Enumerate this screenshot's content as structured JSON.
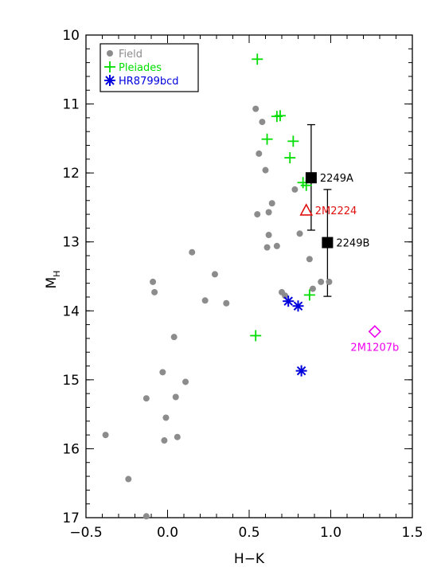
{
  "chart_data": {
    "type": "scatter",
    "title": "",
    "xlabel": "H−K",
    "ylabel_main": "M",
    "ylabel_sub": "H",
    "xlim": [
      -0.5,
      1.5
    ],
    "ylim": [
      17,
      10
    ],
    "y_inverted": true,
    "grid": false,
    "legend_position": "top-left",
    "x_ticks": [
      {
        "value": -0.5,
        "label": "−0.5"
      },
      {
        "value": 0.0,
        "label": "0.0"
      },
      {
        "value": 0.5,
        "label": "0.5"
      },
      {
        "value": 1.0,
        "label": "1.0"
      },
      {
        "value": 1.5,
        "label": "1.5"
      }
    ],
    "y_ticks": [
      {
        "value": 10,
        "label": "10"
      },
      {
        "value": 11,
        "label": "11"
      },
      {
        "value": 12,
        "label": "12"
      },
      {
        "value": 13,
        "label": "13"
      },
      {
        "value": 14,
        "label": "14"
      },
      {
        "value": 15,
        "label": "15"
      },
      {
        "value": 16,
        "label": "16"
      },
      {
        "value": 17,
        "label": "17"
      }
    ],
    "series": [
      {
        "name": "Field",
        "marker": "circle",
        "color": "#8c8c8c",
        "points": [
          [
            0.54,
            11.07
          ],
          [
            0.58,
            11.26
          ],
          [
            0.56,
            11.72
          ],
          [
            0.6,
            11.96
          ],
          [
            0.78,
            12.24
          ],
          [
            0.64,
            12.44
          ],
          [
            0.62,
            12.57
          ],
          [
            0.55,
            12.6
          ],
          [
            0.62,
            12.9
          ],
          [
            0.81,
            12.88
          ],
          [
            0.67,
            13.06
          ],
          [
            0.61,
            13.08
          ],
          [
            0.15,
            13.15
          ],
          [
            0.29,
            13.47
          ],
          [
            0.87,
            13.25
          ],
          [
            -0.09,
            13.58
          ],
          [
            0.94,
            13.58
          ],
          [
            0.99,
            13.58
          ],
          [
            -0.08,
            13.73
          ],
          [
            0.7,
            13.73
          ],
          [
            0.72,
            13.78
          ],
          [
            0.89,
            13.68
          ],
          [
            0.23,
            13.85
          ],
          [
            0.36,
            13.89
          ],
          [
            0.04,
            14.38
          ],
          [
            -0.03,
            14.89
          ],
          [
            0.11,
            15.03
          ],
          [
            0.05,
            15.25
          ],
          [
            -0.13,
            15.27
          ],
          [
            -0.01,
            15.55
          ],
          [
            0.06,
            15.83
          ],
          [
            -0.38,
            15.8
          ],
          [
            -0.02,
            15.88
          ],
          [
            -0.24,
            16.44
          ],
          [
            -0.13,
            16.98
          ]
        ]
      },
      {
        "name": "Pleiades",
        "marker": "plus",
        "color": "#00dd00",
        "points": [
          [
            0.55,
            10.35
          ],
          [
            0.67,
            11.18
          ],
          [
            0.69,
            11.17
          ],
          [
            0.61,
            11.51
          ],
          [
            0.77,
            11.54
          ],
          [
            0.75,
            11.78
          ],
          [
            0.83,
            12.14
          ],
          [
            0.85,
            12.18
          ],
          [
            0.87,
            13.77
          ],
          [
            0.54,
            14.36
          ]
        ]
      },
      {
        "name": "HR8799bcd",
        "marker": "asterisk",
        "color": "#0000dd",
        "points": [
          [
            0.74,
            13.86
          ],
          [
            0.8,
            13.93
          ],
          [
            0.82,
            14.87
          ]
        ]
      }
    ],
    "special_points": [
      {
        "label": "2249A",
        "x": 0.88,
        "y": 12.07,
        "y_err_low": 11.3,
        "y_err_high": 12.83,
        "marker": "square",
        "color": "#000000"
      },
      {
        "label": "2249B",
        "x": 0.98,
        "y": 13.01,
        "y_err_low": 12.24,
        "y_err_high": 13.79,
        "marker": "square",
        "color": "#000000"
      },
      {
        "label": "2M2224",
        "x": 0.85,
        "y": 12.54,
        "marker": "triangle",
        "color": "#e01010"
      },
      {
        "label": "2M1207b",
        "x": 1.27,
        "y": 14.3,
        "marker": "diamond",
        "color": "#ee00ee"
      }
    ]
  }
}
